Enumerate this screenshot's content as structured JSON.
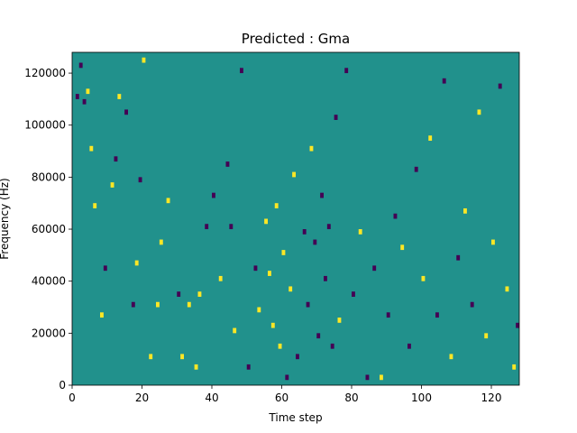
{
  "chart_data": {
    "type": "heatmap",
    "title": "Predicted : Gma",
    "xlabel": "Time step",
    "ylabel": "Frequency (Hz)",
    "xlim": [
      0,
      128
    ],
    "ylim": [
      0,
      128000
    ],
    "x_ticks": [
      0,
      20,
      40,
      60,
      80,
      100,
      120
    ],
    "y_ticks": [
      0,
      20000,
      40000,
      60000,
      80000,
      100000,
      120000
    ],
    "x_tick_labels": [
      "0",
      "20",
      "40",
      "60",
      "80",
      "100",
      "120"
    ],
    "y_tick_labels": [
      "0",
      "20000",
      "40000",
      "60000",
      "80000",
      "100000",
      "120000"
    ],
    "grid": false,
    "background_value": 0,
    "colormap": "viridis",
    "colors": {
      "low": "#440154",
      "mid": "#21918c",
      "high": "#fde725"
    },
    "cells": [
      {
        "t": 1,
        "f": 110000,
        "v": -1
      },
      {
        "t": 2,
        "f": 122000,
        "v": -1
      },
      {
        "t": 3,
        "f": 108000,
        "v": -1
      },
      {
        "t": 4,
        "f": 112000,
        "v": 1
      },
      {
        "t": 5,
        "f": 90000,
        "v": 1
      },
      {
        "t": 6,
        "f": 68000,
        "v": 1
      },
      {
        "t": 8,
        "f": 26000,
        "v": 1
      },
      {
        "t": 9,
        "f": 44000,
        "v": -1
      },
      {
        "t": 11,
        "f": 76000,
        "v": 1
      },
      {
        "t": 12,
        "f": 86000,
        "v": -1
      },
      {
        "t": 13,
        "f": 110000,
        "v": 1
      },
      {
        "t": 15,
        "f": 104000,
        "v": -1
      },
      {
        "t": 17,
        "f": 30000,
        "v": -1
      },
      {
        "t": 18,
        "f": 46000,
        "v": 1
      },
      {
        "t": 19,
        "f": 78000,
        "v": -1
      },
      {
        "t": 20,
        "f": 124000,
        "v": 1
      },
      {
        "t": 22,
        "f": 10000,
        "v": 1
      },
      {
        "t": 24,
        "f": 30000,
        "v": 1
      },
      {
        "t": 25,
        "f": 54000,
        "v": 1
      },
      {
        "t": 27,
        "f": 70000,
        "v": 1
      },
      {
        "t": 30,
        "f": 34000,
        "v": -1
      },
      {
        "t": 31,
        "f": 10000,
        "v": 1
      },
      {
        "t": 33,
        "f": 30000,
        "v": 1
      },
      {
        "t": 35,
        "f": 6000,
        "v": 1
      },
      {
        "t": 36,
        "f": 34000,
        "v": 1
      },
      {
        "t": 38,
        "f": 60000,
        "v": -1
      },
      {
        "t": 40,
        "f": 72000,
        "v": -1
      },
      {
        "t": 42,
        "f": 40000,
        "v": 1
      },
      {
        "t": 44,
        "f": 84000,
        "v": -1
      },
      {
        "t": 45,
        "f": 60000,
        "v": -1
      },
      {
        "t": 46,
        "f": 20000,
        "v": 1
      },
      {
        "t": 48,
        "f": 120000,
        "v": -1
      },
      {
        "t": 50,
        "f": 6000,
        "v": -1
      },
      {
        "t": 52,
        "f": 44000,
        "v": -1
      },
      {
        "t": 53,
        "f": 28000,
        "v": 1
      },
      {
        "t": 55,
        "f": 62000,
        "v": 1
      },
      {
        "t": 56,
        "f": 42000,
        "v": 1
      },
      {
        "t": 57,
        "f": 22000,
        "v": 1
      },
      {
        "t": 58,
        "f": 68000,
        "v": 1
      },
      {
        "t": 59,
        "f": 14000,
        "v": 1
      },
      {
        "t": 60,
        "f": 50000,
        "v": 1
      },
      {
        "t": 61,
        "f": 2000,
        "v": -1
      },
      {
        "t": 62,
        "f": 36000,
        "v": 1
      },
      {
        "t": 63,
        "f": 80000,
        "v": 1
      },
      {
        "t": 64,
        "f": 10000,
        "v": -1
      },
      {
        "t": 66,
        "f": 58000,
        "v": -1
      },
      {
        "t": 67,
        "f": 30000,
        "v": -1
      },
      {
        "t": 68,
        "f": 90000,
        "v": 1
      },
      {
        "t": 69,
        "f": 54000,
        "v": -1
      },
      {
        "t": 70,
        "f": 18000,
        "v": -1
      },
      {
        "t": 71,
        "f": 72000,
        "v": -1
      },
      {
        "t": 72,
        "f": 40000,
        "v": -1
      },
      {
        "t": 73,
        "f": 60000,
        "v": -1
      },
      {
        "t": 74,
        "f": 14000,
        "v": -1
      },
      {
        "t": 75,
        "f": 102000,
        "v": -1
      },
      {
        "t": 76,
        "f": 24000,
        "v": 1
      },
      {
        "t": 78,
        "f": 120000,
        "v": -1
      },
      {
        "t": 80,
        "f": 34000,
        "v": -1
      },
      {
        "t": 82,
        "f": 58000,
        "v": 1
      },
      {
        "t": 84,
        "f": 2000,
        "v": -1
      },
      {
        "t": 86,
        "f": 44000,
        "v": -1
      },
      {
        "t": 88,
        "f": 2000,
        "v": 1
      },
      {
        "t": 90,
        "f": 26000,
        "v": -1
      },
      {
        "t": 92,
        "f": 64000,
        "v": -1
      },
      {
        "t": 94,
        "f": 52000,
        "v": 1
      },
      {
        "t": 96,
        "f": 14000,
        "v": -1
      },
      {
        "t": 98,
        "f": 82000,
        "v": -1
      },
      {
        "t": 100,
        "f": 40000,
        "v": 1
      },
      {
        "t": 102,
        "f": 94000,
        "v": 1
      },
      {
        "t": 104,
        "f": 26000,
        "v": -1
      },
      {
        "t": 106,
        "f": 116000,
        "v": -1
      },
      {
        "t": 108,
        "f": 10000,
        "v": 1
      },
      {
        "t": 110,
        "f": 48000,
        "v": -1
      },
      {
        "t": 112,
        "f": 66000,
        "v": 1
      },
      {
        "t": 114,
        "f": 30000,
        "v": -1
      },
      {
        "t": 116,
        "f": 104000,
        "v": 1
      },
      {
        "t": 118,
        "f": 18000,
        "v": 1
      },
      {
        "t": 120,
        "f": 54000,
        "v": 1
      },
      {
        "t": 122,
        "f": 114000,
        "v": -1
      },
      {
        "t": 124,
        "f": 36000,
        "v": 1
      },
      {
        "t": 126,
        "f": 6000,
        "v": 1
      },
      {
        "t": 127,
        "f": 22000,
        "v": -1
      }
    ]
  }
}
